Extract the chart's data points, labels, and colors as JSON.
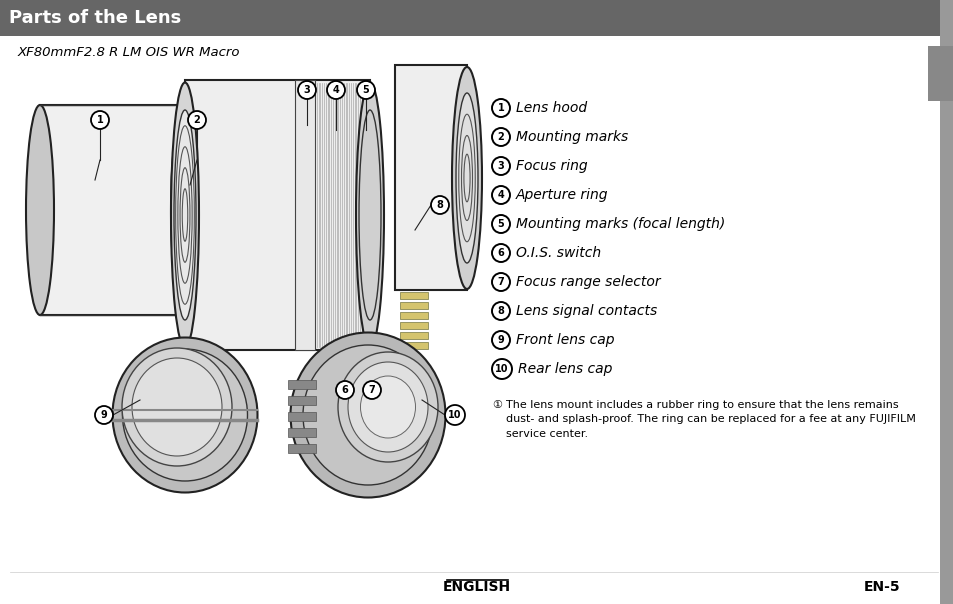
{
  "title": "Parts of the Lens",
  "subtitle": "XF80mmF2.8 R LM OIS WR Macro",
  "header_bg": "#666666",
  "header_text_color": "#ffffff",
  "bg_color": "#ffffff",
  "sidebar_color": "#999999",
  "items": [
    {
      "num": "1",
      "label": "Lens hood"
    },
    {
      "num": "2",
      "label": "Mounting marks"
    },
    {
      "num": "3",
      "label": "Focus ring"
    },
    {
      "num": "4",
      "label": "Aperture ring"
    },
    {
      "num": "5",
      "label": "Mounting marks (focal length)"
    },
    {
      "num": "6",
      "label": "O.I.S. switch"
    },
    {
      "num": "7",
      "label": "Focus range selector"
    },
    {
      "num": "8",
      "label": "Lens signal contacts"
    },
    {
      "num": "9",
      "label": "Front lens cap"
    },
    {
      "num": "10",
      "label": "Rear lens cap"
    }
  ],
  "footnote_sym": "①",
  "footnote_text": "The lens mount includes a rubber ring to ensure that the lens remains\ndust- and splash-proof. The ring can be replaced for a fee at any FUJIFILM\nservice center.",
  "footer_left": "ENGLISH",
  "footer_right": "EN-5"
}
